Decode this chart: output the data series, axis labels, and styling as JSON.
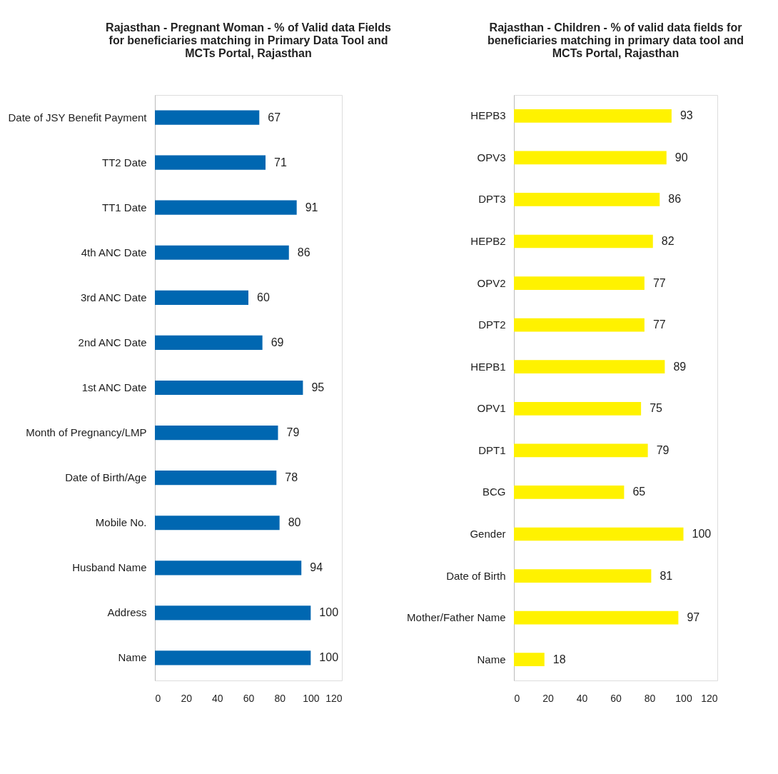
{
  "chart_data": [
    {
      "type": "bar",
      "orientation": "horizontal",
      "title": "Rajasthan - Pregnant Woman - % of Valid data Fields for beneficiaries matching in Primary Data Tool and MCTs Portal, Rajasthan",
      "categories": [
        "Date of JSY Benefit Payment",
        "TT2 Date",
        "TT1 Date",
        "4th ANC Date",
        "3rd ANC Date",
        "2nd ANC Date",
        "1st ANC Date",
        "Month of Pregnancy/LMP",
        "Date of Birth/Age",
        "Mobile No.",
        "Husband Name",
        "Address",
        "Name"
      ],
      "values": [
        67,
        71,
        91,
        86,
        60,
        69,
        95,
        79,
        78,
        80,
        94,
        100,
        100
      ],
      "color": "#0067b1",
      "xlim": [
        0,
        120
      ],
      "xticks": [
        0,
        20,
        40,
        60,
        80,
        100,
        120
      ],
      "grid": false,
      "legend": false,
      "data_labels": true
    },
    {
      "type": "bar",
      "orientation": "horizontal",
      "title": "Rajasthan - Children - % of valid data fields for beneficiaries matching in primary data tool and MCTs Portal, Rajasthan",
      "categories": [
        "HEPB3",
        "OPV3",
        "DPT3",
        "HEPB2",
        "OPV2",
        "DPT2",
        "HEPB1",
        "OPV1",
        "DPT1",
        "BCG",
        "Gender",
        "Date of Birth",
        "Mother/Father Name",
        "Name"
      ],
      "values": [
        93,
        90,
        86,
        82,
        77,
        77,
        89,
        75,
        79,
        65,
        100,
        81,
        97,
        18
      ],
      "color": "#fff200",
      "xlim": [
        0,
        120
      ],
      "xticks": [
        0,
        20,
        40,
        60,
        80,
        100,
        120
      ],
      "grid": false,
      "legend": false,
      "data_labels": true
    }
  ]
}
